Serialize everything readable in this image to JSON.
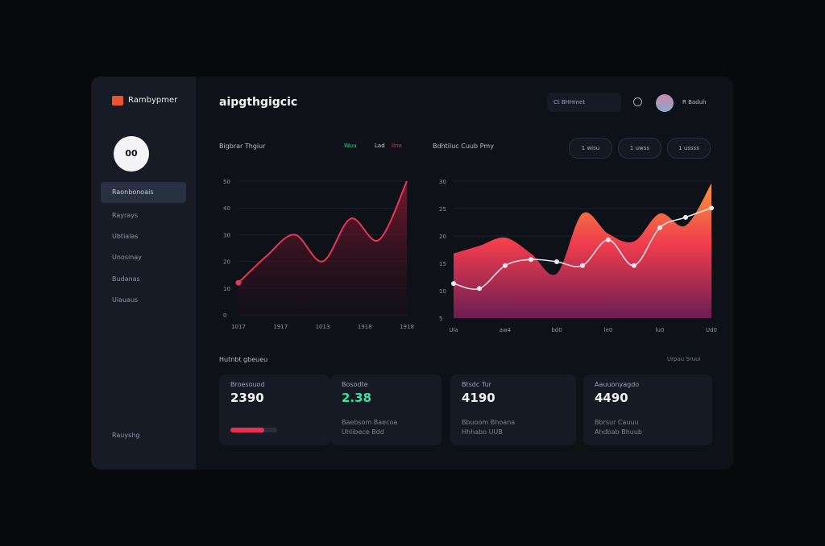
{
  "header": {
    "logo": "Rambypmer",
    "title": "aipgthgigcic",
    "search": "Ct BHHmet",
    "user": "R Baduh"
  },
  "sidebar": {
    "avatar": "00",
    "items": [
      "Raonbonoais",
      "Rayrays",
      "Ubtialas",
      "Unosinay",
      "Budanas",
      "Uiauaus"
    ],
    "bottom": "Rauyshg"
  },
  "chart_data": [
    {
      "type": "line",
      "title": "Bigbrar Thgiur",
      "legend": [
        "Wuu",
        "Lad",
        "lino"
      ],
      "x": [
        0,
        1,
        2,
        3,
        4,
        5,
        6
      ],
      "xlim": [
        0,
        6
      ],
      "xticks": [
        {
          "value": 0,
          "label": "1017"
        },
        {
          "value": 1.5,
          "label": "1917"
        },
        {
          "value": 3,
          "label": "1013"
        },
        {
          "value": 4.5,
          "label": "1918"
        },
        {
          "value": 6,
          "label": "1918"
        }
      ],
      "ylim": [
        0,
        50
      ],
      "yticks": [
        0,
        10,
        20,
        30,
        40,
        50
      ],
      "series": [
        {
          "name": "Wuu",
          "color": "#e23a52",
          "values": [
            12,
            22,
            30,
            20,
            36,
            28,
            50
          ]
        }
      ]
    },
    {
      "type": "area",
      "title": "Bdhtiluc Cuub Pmy",
      "buttons": [
        "1 wisu",
        "1 uwss",
        "1 ussss"
      ],
      "x": [
        0,
        1,
        2,
        3,
        4,
        5,
        6,
        7,
        8,
        9,
        10
      ],
      "xlim": [
        0,
        10
      ],
      "xticks": [
        {
          "value": 0,
          "label": "Ula"
        },
        {
          "value": 2,
          "label": "aw4"
        },
        {
          "value": 4,
          "label": "bd0"
        },
        {
          "value": 6,
          "label": "le0"
        },
        {
          "value": 8,
          "label": "lu0"
        },
        {
          "value": 10,
          "label": "Ud0"
        }
      ],
      "ylim": [
        5,
        30
      ],
      "yticks": [
        5,
        10,
        15,
        20,
        25,
        30
      ],
      "series": [
        {
          "name": "Lad",
          "color": "#f5873a",
          "values": [
            16.8,
            18.2,
            19.7,
            16.8,
            13.1,
            24.1,
            20.4,
            19,
            24.1,
            21.9,
            29.6
          ]
        },
        {
          "name": "lino",
          "color": "#e8e8ee",
          "values": [
            11.3,
            10.4,
            14.6,
            15.7,
            15.3,
            14.6,
            19.3,
            14.6,
            21.5,
            23.4,
            25.1
          ]
        }
      ]
    }
  ],
  "section": {
    "title": "Hutnbt gbeueu",
    "link": "Urpau Sruui"
  },
  "cards": [
    {
      "label": "Broesouod",
      "value": "2390"
    },
    {
      "label": "Bosodte",
      "value": "2.38",
      "lines": [
        "Baebsom Baecoa",
        "Uhlibece Bdd"
      ]
    },
    {
      "label": "Btsdc Tur",
      "value": "4190",
      "lines": [
        "Bbuoom Bhoana",
        "Hhhabo UUB"
      ]
    },
    {
      "label": "Aauuonyagdo",
      "value": "4490",
      "lines": [
        "Bbrsur Cauuu",
        "Ahdbab Bhuub"
      ]
    }
  ]
}
